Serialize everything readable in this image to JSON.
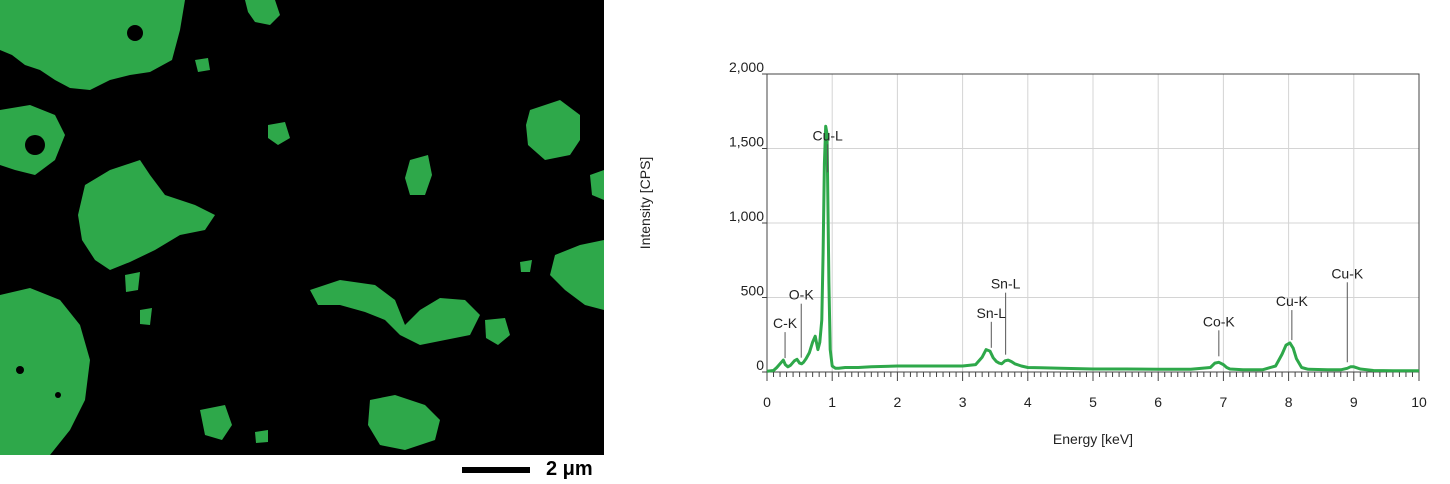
{
  "element_map": {
    "background_color": "#000000",
    "element_color": "#2ea84a",
    "scale_bar_label": "2 μm"
  },
  "chart_data": {
    "type": "line",
    "title": "",
    "xlabel": "Energy [keV]",
    "ylabel": "Intensity [CPS]",
    "xlim": [
      0,
      10
    ],
    "ylim": [
      0,
      2000
    ],
    "x_ticks": [
      0,
      1,
      2,
      3,
      4,
      5,
      6,
      7,
      8,
      9,
      10
    ],
    "x_tick_labels": [
      "0",
      "1",
      "2",
      "3",
      "4",
      "5",
      "6",
      "7",
      "8",
      "9",
      "10"
    ],
    "y_ticks": [
      0,
      500,
      1000,
      1500,
      2000
    ],
    "y_tick_labels": [
      "0",
      "500",
      "1,000",
      "1,500",
      "2,000"
    ],
    "grid": true,
    "line_color": "#2ea84a",
    "series": [
      {
        "x": [
          0.0,
          0.1,
          0.15,
          0.2,
          0.25,
          0.28,
          0.32,
          0.36,
          0.42,
          0.46,
          0.5,
          0.53,
          0.56,
          0.6,
          0.65,
          0.7,
          0.74,
          0.78,
          0.81,
          0.84,
          0.86,
          0.88,
          0.9,
          0.92,
          0.93,
          0.95,
          0.97,
          1.0,
          1.05,
          1.1,
          1.2,
          1.4,
          1.6,
          2.0,
          2.5,
          3.0,
          3.2,
          3.3,
          3.36,
          3.42,
          3.47,
          3.52,
          3.56,
          3.6,
          3.65,
          3.7,
          3.75,
          3.8,
          3.9,
          4.0,
          4.2,
          4.5,
          5.0,
          5.5,
          6.0,
          6.5,
          6.8,
          6.87,
          6.93,
          7.0,
          7.05,
          7.1,
          7.3,
          7.6,
          7.8,
          7.9,
          7.96,
          8.02,
          8.07,
          8.12,
          8.2,
          8.3,
          8.6,
          8.8,
          8.9,
          8.95,
          9.0,
          9.1,
          9.3,
          9.6,
          10.0
        ],
        "y": [
          5,
          10,
          30,
          55,
          80,
          50,
          35,
          45,
          75,
          85,
          60,
          55,
          65,
          90,
          130,
          200,
          240,
          150,
          200,
          350,
          800,
          1400,
          1650,
          1600,
          1300,
          600,
          150,
          40,
          25,
          25,
          30,
          30,
          35,
          40,
          40,
          40,
          50,
          100,
          150,
          140,
          95,
          70,
          60,
          55,
          75,
          80,
          70,
          55,
          40,
          30,
          28,
          25,
          20,
          20,
          18,
          18,
          30,
          60,
          65,
          50,
          30,
          20,
          15,
          15,
          40,
          120,
          180,
          195,
          160,
          90,
          30,
          18,
          15,
          15,
          25,
          35,
          35,
          20,
          10,
          8,
          8
        ]
      }
    ],
    "annotations": [
      {
        "label": "C-K",
        "x": 0.277
      },
      {
        "label": "O-K",
        "x": 0.525
      },
      {
        "label": "Cu-L",
        "x": 0.93
      },
      {
        "label": "Sn-L",
        "x": 3.44
      },
      {
        "label": "Sn-L",
        "x": 3.66
      },
      {
        "label": "Co-K",
        "x": 6.93
      },
      {
        "label": "Cu-K",
        "x": 8.05
      },
      {
        "label": "Cu-K",
        "x": 8.9
      }
    ]
  }
}
